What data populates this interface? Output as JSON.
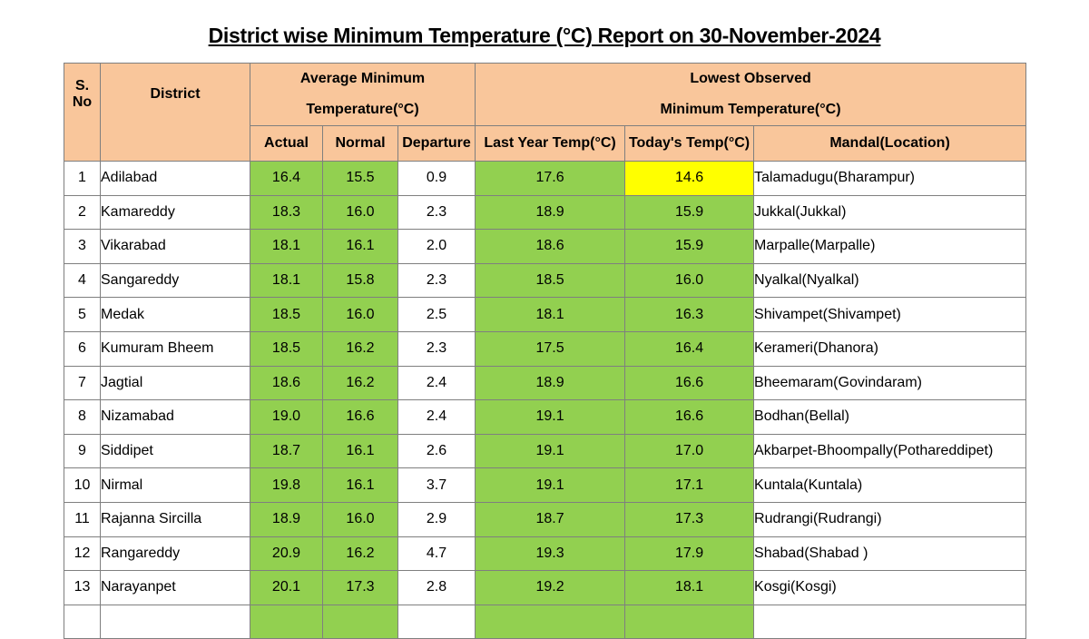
{
  "title": "District wise Minimum Temperature (°C) Report on 30-November-2024",
  "headers": {
    "sno_line1": "S.",
    "sno_line2": "No",
    "district": "District",
    "avg_line1": "Average Minimum",
    "avg_line2": "Temperature(°C)",
    "lowest_line1": "Lowest Observed",
    "lowest_line2": "Minimum Temperature(°C)",
    "actual": "Actual",
    "normal": "Normal",
    "departure": "Departure",
    "last_year": "Last Year Temp(°C)",
    "today": "Today's Temp(°C)",
    "mandal": "Mandal(Location)"
  },
  "rows": [
    {
      "sno": "1",
      "district": "Adilabad",
      "actual": "16.4",
      "normal": "15.5",
      "departure": "0.9",
      "last_year": "17.6",
      "today": "14.6",
      "mandal": "Talamadugu(Bharampur)"
    },
    {
      "sno": "2",
      "district": "Kamareddy",
      "actual": "18.3",
      "normal": "16.0",
      "departure": "2.3",
      "last_year": "18.9",
      "today": "15.9",
      "mandal": "Jukkal(Jukkal)"
    },
    {
      "sno": "3",
      "district": "Vikarabad",
      "actual": "18.1",
      "normal": "16.1",
      "departure": "2.0",
      "last_year": "18.6",
      "today": "15.9",
      "mandal": "Marpalle(Marpalle)"
    },
    {
      "sno": "4",
      "district": "Sangareddy",
      "actual": "18.1",
      "normal": "15.8",
      "departure": "2.3",
      "last_year": "18.5",
      "today": "16.0",
      "mandal": "Nyalkal(Nyalkal)"
    },
    {
      "sno": "5",
      "district": "Medak",
      "actual": "18.5",
      "normal": "16.0",
      "departure": "2.5",
      "last_year": "18.1",
      "today": "16.3",
      "mandal": "Shivampet(Shivampet)"
    },
    {
      "sno": "6",
      "district": "Kumuram Bheem",
      "actual": "18.5",
      "normal": "16.2",
      "departure": "2.3",
      "last_year": "17.5",
      "today": "16.4",
      "mandal": "Kerameri(Dhanora)"
    },
    {
      "sno": "7",
      "district": "Jagtial",
      "actual": "18.6",
      "normal": "16.2",
      "departure": "2.4",
      "last_year": "18.9",
      "today": "16.6",
      "mandal": "Bheemaram(Govindaram)"
    },
    {
      "sno": "8",
      "district": "Nizamabad",
      "actual": "19.0",
      "normal": "16.6",
      "departure": "2.4",
      "last_year": "19.1",
      "today": "16.6",
      "mandal": "Bodhan(Bellal)"
    },
    {
      "sno": "9",
      "district": "Siddipet",
      "actual": "18.7",
      "normal": "16.1",
      "departure": "2.6",
      "last_year": "19.1",
      "today": "17.0",
      "mandal": "Akbarpet-Bhoompally(Pothareddipet)"
    },
    {
      "sno": "10",
      "district": "Nirmal",
      "actual": "19.8",
      "normal": "16.1",
      "departure": "3.7",
      "last_year": "19.1",
      "today": "17.1",
      "mandal": "Kuntala(Kuntala)"
    },
    {
      "sno": "11",
      "district": "Rajanna Sircilla",
      "actual": "18.9",
      "normal": "16.0",
      "departure": "2.9",
      "last_year": "18.7",
      "today": "17.3",
      "mandal": "Rudrangi(Rudrangi)"
    },
    {
      "sno": "12",
      "district": "Rangareddy",
      "actual": "20.9",
      "normal": "16.2",
      "departure": "4.7",
      "last_year": "19.3",
      "today": "17.9",
      "mandal": "Shabad(Shabad )"
    },
    {
      "sno": "13",
      "district": "Narayanpet",
      "actual": "20.1",
      "normal": "17.3",
      "departure": "2.8",
      "last_year": "19.2",
      "today": "18.1",
      "mandal": "Kosgi(Kosgi)"
    }
  ],
  "colors": {
    "header_bg": "#f9c69b",
    "value_bg": "#92d050",
    "highlight_bg": "#ffff00"
  }
}
